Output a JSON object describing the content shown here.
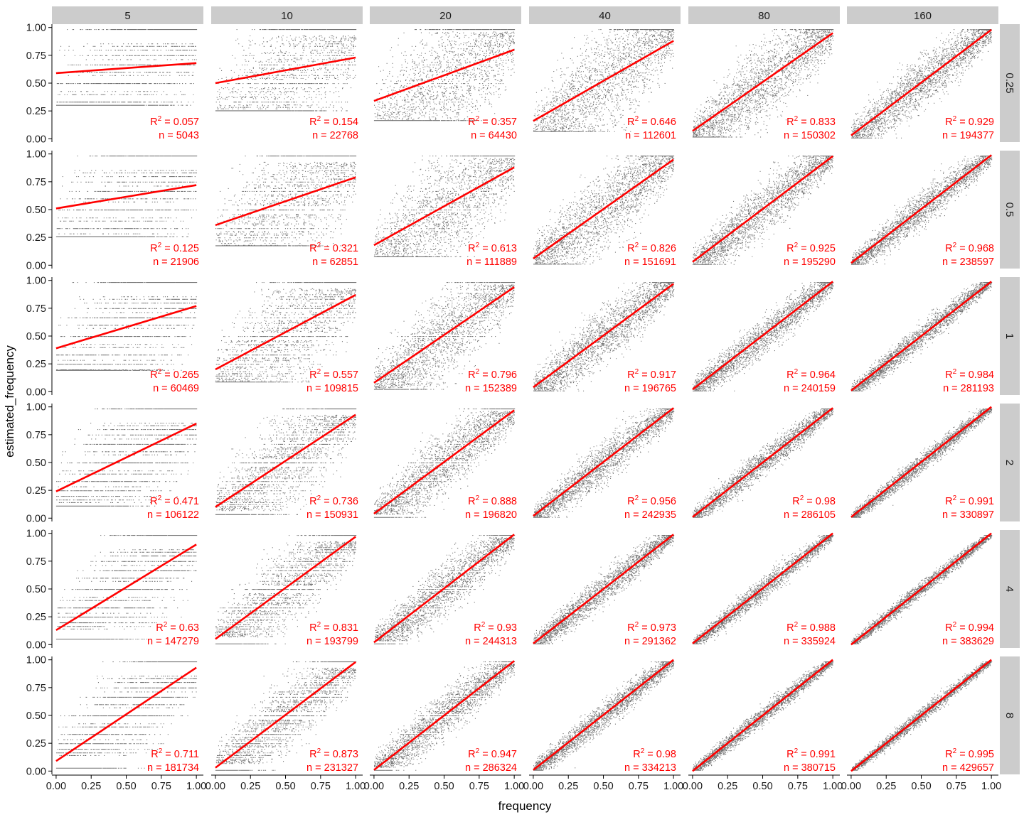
{
  "chart_data": {
    "type": "scatter",
    "title": "",
    "xlabel": "frequency",
    "ylabel": "estimated_frequency",
    "xlim": [
      -0.03,
      1.05
    ],
    "ylim": [
      -0.03,
      1.03
    ],
    "x_ticks": [
      "0.00",
      "0.25",
      "0.50",
      "0.75",
      "1.00"
    ],
    "y_ticks": [
      "0.00",
      "0.25",
      "0.50",
      "0.75",
      "1.00"
    ],
    "grid": false,
    "legend": "none",
    "facet_cols": [
      "5",
      "10",
      "20",
      "40",
      "80",
      "160"
    ],
    "facet_rows": [
      "0.25",
      "0.5",
      "1",
      "2",
      "4",
      "8"
    ],
    "point_color": "#000000",
    "fit_color": "#ff0000",
    "strip_color": "#cccccc",
    "panels": [
      [
        {
          "r2": "0.057",
          "n": "5043",
          "fit": [
            0.59,
            0.68
          ]
        },
        {
          "r2": "0.154",
          "n": "22768",
          "fit": [
            0.5,
            0.73
          ]
        },
        {
          "r2": "0.357",
          "n": "64430",
          "fit": [
            0.34,
            0.8
          ]
        },
        {
          "r2": "0.646",
          "n": "112601",
          "fit": [
            0.16,
            0.88
          ]
        },
        {
          "r2": "0.833",
          "n": "150302",
          "fit": [
            0.07,
            0.95
          ]
        },
        {
          "r2": "0.929",
          "n": "194377",
          "fit": [
            0.03,
            0.98
          ]
        }
      ],
      [
        {
          "r2": "0.125",
          "n": "21906",
          "fit": [
            0.51,
            0.72
          ]
        },
        {
          "r2": "0.321",
          "n": "62851",
          "fit": [
            0.36,
            0.79
          ]
        },
        {
          "r2": "0.613",
          "n": "111889",
          "fit": [
            0.18,
            0.88
          ]
        },
        {
          "r2": "0.826",
          "n": "151691",
          "fit": [
            0.06,
            0.95
          ]
        },
        {
          "r2": "0.925",
          "n": "195290",
          "fit": [
            0.03,
            0.98
          ]
        },
        {
          "r2": "0.968",
          "n": "238597",
          "fit": [
            0.02,
            0.99
          ]
        }
      ],
      [
        {
          "r2": "0.265",
          "n": "60469",
          "fit": [
            0.39,
            0.77
          ]
        },
        {
          "r2": "0.557",
          "n": "109815",
          "fit": [
            0.2,
            0.87
          ]
        },
        {
          "r2": "0.796",
          "n": "152389",
          "fit": [
            0.08,
            0.94
          ]
        },
        {
          "r2": "0.917",
          "n": "196765",
          "fit": [
            0.04,
            0.97
          ]
        },
        {
          "r2": "0.964",
          "n": "240159",
          "fit": [
            0.02,
            0.99
          ]
        },
        {
          "r2": "0.984",
          "n": "281193",
          "fit": [
            0.01,
            0.99
          ]
        }
      ],
      [
        {
          "r2": "0.471",
          "n": "106122",
          "fit": [
            0.24,
            0.85
          ]
        },
        {
          "r2": "0.736",
          "n": "150931",
          "fit": [
            0.1,
            0.93
          ]
        },
        {
          "r2": "0.888",
          "n": "196820",
          "fit": [
            0.04,
            0.97
          ]
        },
        {
          "r2": "0.956",
          "n": "242935",
          "fit": [
            0.02,
            0.99
          ]
        },
        {
          "r2": "0.98",
          "n": "286105",
          "fit": [
            0.01,
            0.99
          ]
        },
        {
          "r2": "0.991",
          "n": "330897",
          "fit": [
            0.01,
            1.0
          ]
        }
      ],
      [
        {
          "r2": "0.63",
          "n": "147279",
          "fit": [
            0.13,
            0.9
          ]
        },
        {
          "r2": "0.831",
          "n": "193799",
          "fit": [
            0.05,
            0.97
          ]
        },
        {
          "r2": "0.93",
          "n": "244313",
          "fit": [
            0.02,
            0.99
          ]
        },
        {
          "r2": "0.973",
          "n": "291362",
          "fit": [
            0.01,
            0.99
          ]
        },
        {
          "r2": "0.988",
          "n": "335924",
          "fit": [
            0.01,
            1.0
          ]
        },
        {
          "r2": "0.994",
          "n": "383629",
          "fit": [
            0.0,
            1.0
          ]
        }
      ],
      [
        {
          "r2": "0.711",
          "n": "181734",
          "fit": [
            0.09,
            0.93
          ]
        },
        {
          "r2": "0.873",
          "n": "231327",
          "fit": [
            0.03,
            0.98
          ]
        },
        {
          "r2": "0.947",
          "n": "286324",
          "fit": [
            0.01,
            0.99
          ]
        },
        {
          "r2": "0.98",
          "n": "334213",
          "fit": [
            0.01,
            1.0
          ]
        },
        {
          "r2": "0.991",
          "n": "380715",
          "fit": [
            0.0,
            1.0
          ]
        },
        {
          "r2": "0.995",
          "n": "429657",
          "fit": [
            0.0,
            1.0
          ]
        }
      ]
    ]
  }
}
